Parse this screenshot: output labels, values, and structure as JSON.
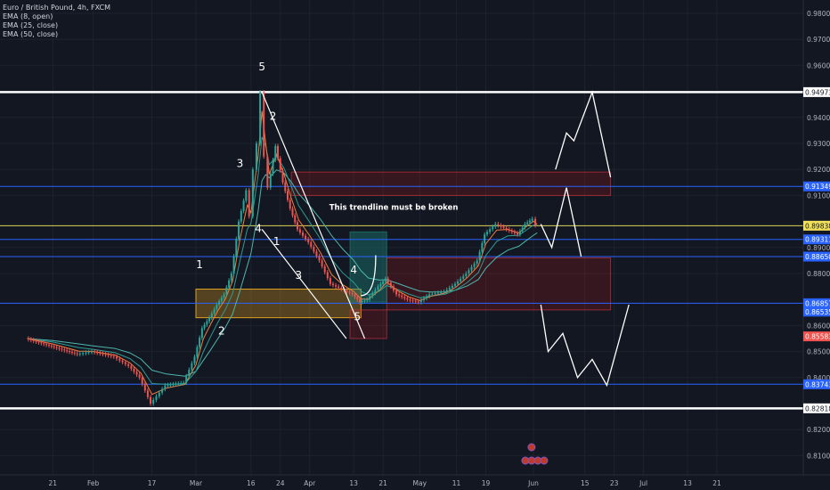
{
  "legend": {
    "title": "Euro / British Pound, 4h, FXCM",
    "indicators": [
      "EMA (8, open)",
      "EMA (25, close)",
      "EMA (50, close)"
    ]
  },
  "colors": {
    "background": "#131722",
    "grid": "#1e222d",
    "up": "#26a69a",
    "down": "#ef5350",
    "ema_fast": "#f57c3b",
    "ema_mid": "#2e9b8f",
    "ema_slow": "#4db6ac",
    "white": "#ffffff",
    "blue": "#2962ff",
    "yellow_line": "#e0d25a",
    "orange_zone": "#e0a020",
    "red_zone": "#b71c1c",
    "green_zone": "#1e8c7e",
    "axis_text": "#b2b5be"
  },
  "chart_data": {
    "type": "line",
    "symbol": "Euro / British Pound, 4h, FXCM",
    "y_axis": {
      "side": "right",
      "ticks": [
        "0.98000",
        "0.97000",
        "0.96000",
        "0.94000",
        "0.93000",
        "0.92000",
        "0.91000",
        "0.89000",
        "0.88000",
        "0.86000",
        "0.85000",
        "0.84000",
        "0.82000",
        "0.81000"
      ]
    },
    "x_axis": {
      "ticks": [
        "21",
        "Feb",
        "17",
        "Mar",
        "16",
        "24",
        "Apr",
        "13",
        "21",
        "May",
        "11",
        "19",
        "Jun",
        "15",
        "23",
        "Jul",
        "13",
        "21"
      ]
    },
    "price_labels": [
      {
        "label": "0.94973",
        "style": "white"
      },
      {
        "label": "0.91349",
        "style": "blue"
      },
      {
        "label": "0.89838",
        "style": "yellow"
      },
      {
        "label": "0.89311",
        "style": "blue"
      },
      {
        "label": "0.88650",
        "style": "blue"
      },
      {
        "label": "0.86857",
        "style": "blue"
      },
      {
        "label": "0.86535",
        "style": "blue"
      },
      {
        "label": "0.85583",
        "style": "red"
      },
      {
        "label": "0.83743",
        "style": "blue"
      },
      {
        "label": "0.82818",
        "style": "white"
      }
    ],
    "horizontal_levels": [
      {
        "value": 0.94973,
        "style": "white"
      },
      {
        "value": 0.91349,
        "style": "blue"
      },
      {
        "value": 0.89838,
        "style": "yellow"
      },
      {
        "value": 0.89311,
        "style": "blue"
      },
      {
        "value": 0.8865,
        "style": "blue"
      },
      {
        "value": 0.86857,
        "style": "blue"
      },
      {
        "value": 0.83743,
        "style": "blue"
      },
      {
        "value": 0.82818,
        "style": "white"
      }
    ],
    "price_path": [
      [
        "Jan 14",
        0.855
      ],
      [
        "Jan 21",
        0.852
      ],
      [
        "Jan 28",
        0.849
      ],
      [
        "Feb 1",
        0.85
      ],
      [
        "Feb 7",
        0.848
      ],
      [
        "Feb 11",
        0.8445
      ],
      [
        "Feb 14",
        0.84
      ],
      [
        "Feb 17",
        0.83
      ],
      [
        "Feb 21",
        0.837
      ],
      [
        "Feb 26",
        0.838
      ],
      [
        "Mar 1",
        0.848
      ],
      [
        "Mar 3",
        0.859
      ],
      [
        "Mar 5",
        0.863
      ],
      [
        "Mar 7",
        0.868
      ],
      [
        "Mar 9",
        0.872
      ],
      [
        "Mar 11",
        0.88
      ],
      [
        "Mar 13",
        0.9
      ],
      [
        "Mar 15",
        0.912
      ],
      [
        "Mar 16",
        0.902
      ],
      [
        "Mar 17",
        0.92
      ],
      [
        "Mar 18",
        0.93
      ],
      [
        "Mar 19",
        0.9497
      ],
      [
        "Mar 20",
        0.925
      ],
      [
        "Mar 21",
        0.913
      ],
      [
        "Mar 23",
        0.929
      ],
      [
        "Mar 25",
        0.915
      ],
      [
        "Mar 27",
        0.905
      ],
      [
        "Mar 29",
        0.897
      ],
      [
        "Apr 1",
        0.892
      ],
      [
        "Apr 4",
        0.885
      ],
      [
        "Apr 7",
        0.876
      ],
      [
        "Apr 10",
        0.874
      ],
      [
        "Apr 13",
        0.872
      ],
      [
        "Apr 15",
        0.869
      ],
      [
        "Apr 17",
        0.87
      ],
      [
        "Apr 20",
        0.875
      ],
      [
        "Apr 22",
        0.878
      ],
      [
        "Apr 25",
        0.872
      ],
      [
        "Apr 28",
        0.87
      ],
      [
        "May 1",
        0.869
      ],
      [
        "May 4",
        0.872
      ],
      [
        "May 8",
        0.873
      ],
      [
        "May 11",
        0.876
      ],
      [
        "May 14",
        0.88
      ],
      [
        "May 17",
        0.885
      ],
      [
        "May 19",
        0.895
      ],
      [
        "May 22",
        0.899
      ],
      [
        "May 25",
        0.897
      ],
      [
        "May 28",
        0.895
      ],
      [
        "May 30",
        0.899
      ],
      [
        "Jun 1",
        0.901
      ],
      [
        "Jun 2",
        0.8985
      ]
    ],
    "forecast_top": [
      [
        "Jun 3",
        0.899
      ],
      [
        "Jun 6",
        0.89
      ],
      [
        "Jun 10",
        0.913
      ],
      [
        "Jun 14",
        0.8865
      ]
    ],
    "forecast_upper": [
      [
        "Jun 7",
        0.92
      ],
      [
        "Jun 10",
        0.934
      ],
      [
        "Jun 12",
        0.931
      ],
      [
        "Jun 17",
        0.9497
      ],
      [
        "Jun 22",
        0.917
      ]
    ],
    "forecast_lower": [
      [
        "Jun 3",
        0.868
      ],
      [
        "Jun 5",
        0.85
      ],
      [
        "Jun 9",
        0.857
      ],
      [
        "Jun 13",
        0.84
      ],
      [
        "Jun 17",
        0.847
      ],
      [
        "Jun 21",
        0.837
      ],
      [
        "Jun 27",
        0.868
      ]
    ],
    "trendlines": [
      {
        "from": [
          "Mar 19",
          0.9497
        ],
        "to": [
          "Apr 16",
          0.855
        ]
      },
      {
        "from": [
          "Mar 19",
          0.897
        ],
        "to": [
          "Apr 11",
          0.855
        ]
      }
    ],
    "zones": [
      {
        "style": "orange",
        "from": [
          "Mar 1",
          0.874
        ],
        "to": [
          "Apr 15",
          0.863
        ]
      },
      {
        "style": "red",
        "from": [
          "Mar 27",
          0.919
        ],
        "to": [
          "Jun 22",
          0.91
        ]
      },
      {
        "style": "red",
        "from": [
          "Apr 22",
          0.886
        ],
        "to": [
          "Jun 22",
          0.866
        ]
      },
      {
        "style": "red",
        "from": [
          "Apr 12",
          0.866
        ],
        "to": [
          "Apr 22",
          0.855
        ]
      },
      {
        "style": "green",
        "from": [
          "Apr 12",
          0.896
        ],
        "to": [
          "Apr 22",
          0.869
        ]
      }
    ],
    "wave_labels": [
      {
        "text": "5",
        "at": [
          "Mar 19",
          0.958
        ]
      },
      {
        "text": "1",
        "at": [
          "Mar 2",
          0.882
        ]
      },
      {
        "text": "2",
        "at": [
          "Mar 8",
          0.8565
        ]
      },
      {
        "text": "3",
        "at": [
          "Mar 13",
          0.921
        ]
      },
      {
        "text": "4",
        "at": [
          "Mar 18",
          0.896
        ]
      },
      {
        "text": "2",
        "at": [
          "Mar 22",
          0.939
        ]
      },
      {
        "text": "1",
        "at": [
          "Mar 23",
          0.891
        ]
      },
      {
        "text": "3",
        "at": [
          "Mar 29",
          0.878
        ]
      },
      {
        "text": "4",
        "at": [
          "Apr 13",
          0.88
        ]
      },
      {
        "text": "5",
        "at": [
          "Apr 14",
          0.862
        ]
      }
    ],
    "annotation": {
      "text": "This trendline must be broken",
      "at": [
        "Apr 1",
        0.9045
      ]
    }
  }
}
